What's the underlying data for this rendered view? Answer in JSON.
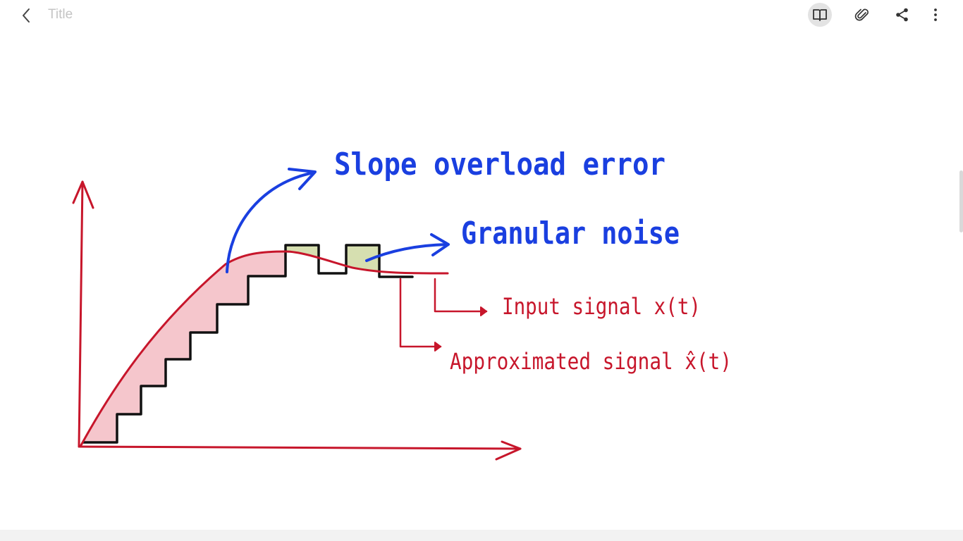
{
  "toolbar": {
    "title_placeholder": "Title",
    "icons": {
      "back": "chevron-left-icon",
      "read_mode": "book-open-icon",
      "attach": "paperclip-icon",
      "share": "share-icon",
      "more": "more-vertical-icon"
    }
  },
  "note": {
    "labels": {
      "slope_overload": "Slope overload error",
      "granular_noise": "Granular noise",
      "input_signal": "Input signal x(t)",
      "approx_signal": "Approximated signal x̂(t)"
    }
  },
  "colors": {
    "ink_blue": "#1a3fe0",
    "ink_red": "#c7162b",
    "ink_black": "#111111",
    "fill_pink": "#f5c6cc",
    "fill_green": "#d6dfb0"
  }
}
